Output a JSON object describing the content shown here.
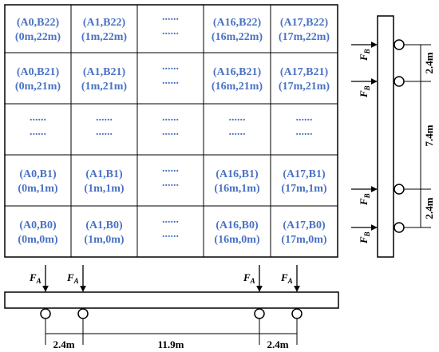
{
  "grid": {
    "rows": [
      [
        "(A0,B22)|(0m,22m)",
        "(A1,B22)|(1m,22m)",
        "dots",
        "(A16,B22)|(16m,22m)",
        "(A17,B22)|(17m,22m)"
      ],
      [
        "(A0,B21)|(0m,21m)",
        "(A1,B21)|(1m,21m)",
        "dots",
        "(A16,B21)|(16m,21m)",
        "(A17,B21)|(17m,21m)"
      ],
      [
        "dots",
        "dots",
        "dots",
        "dots",
        "dots"
      ],
      [
        "(A0,B1)|(0m,1m)",
        "(A1,B1)|(1m,1m)",
        "dots",
        "(A16,B1)|(16m,1m)",
        "(A17,B1)|(17m,1m)"
      ],
      [
        "(A0,B0)|(0m,0m)",
        "(A1,B0)|(1m,0m)",
        "dots",
        "(A16,B0)|(16m,0m)",
        "(A17,B0)|(17m,0m)"
      ]
    ],
    "dots_text": "......",
    "text_color": "#4a72c4"
  },
  "horizontal_beam": {
    "force_label": "F",
    "force_subscript": "A",
    "dimensions": [
      "2.4m",
      "11.9m",
      "2.4m"
    ]
  },
  "vertical_beam": {
    "force_label": "F",
    "force_subscript": "B",
    "dimensions": [
      "2.4m",
      "7.4m",
      "2.4m"
    ]
  }
}
